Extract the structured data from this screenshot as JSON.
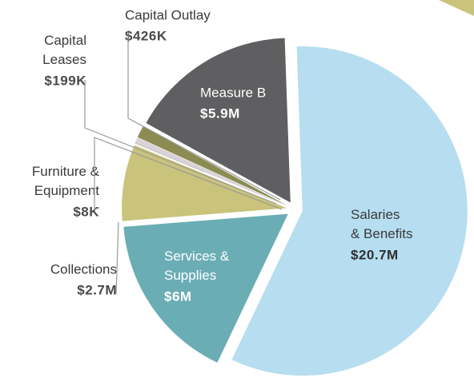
{
  "chart_data": {
    "type": "pie",
    "categories": [
      "Salaries & Benefits",
      "Services & Supplies",
      "Collections",
      "Furniture & Equipment",
      "Capital Leases",
      "Capital Outlay",
      "Measure B"
    ],
    "values": [
      20700000,
      6000000,
      2700000,
      8000,
      199000,
      426000,
      5900000
    ],
    "value_labels": [
      "$20.7M",
      "$6M",
      "$2.7M",
      "$8K",
      "$199K",
      "$426K",
      "$5.9M"
    ],
    "colors": [
      "#b7ddf1",
      "#6badb5",
      "#c9c37b",
      "#1b1b1b",
      "#d9d3d7",
      "#8b8b52",
      "#5f5f61"
    ]
  }
}
